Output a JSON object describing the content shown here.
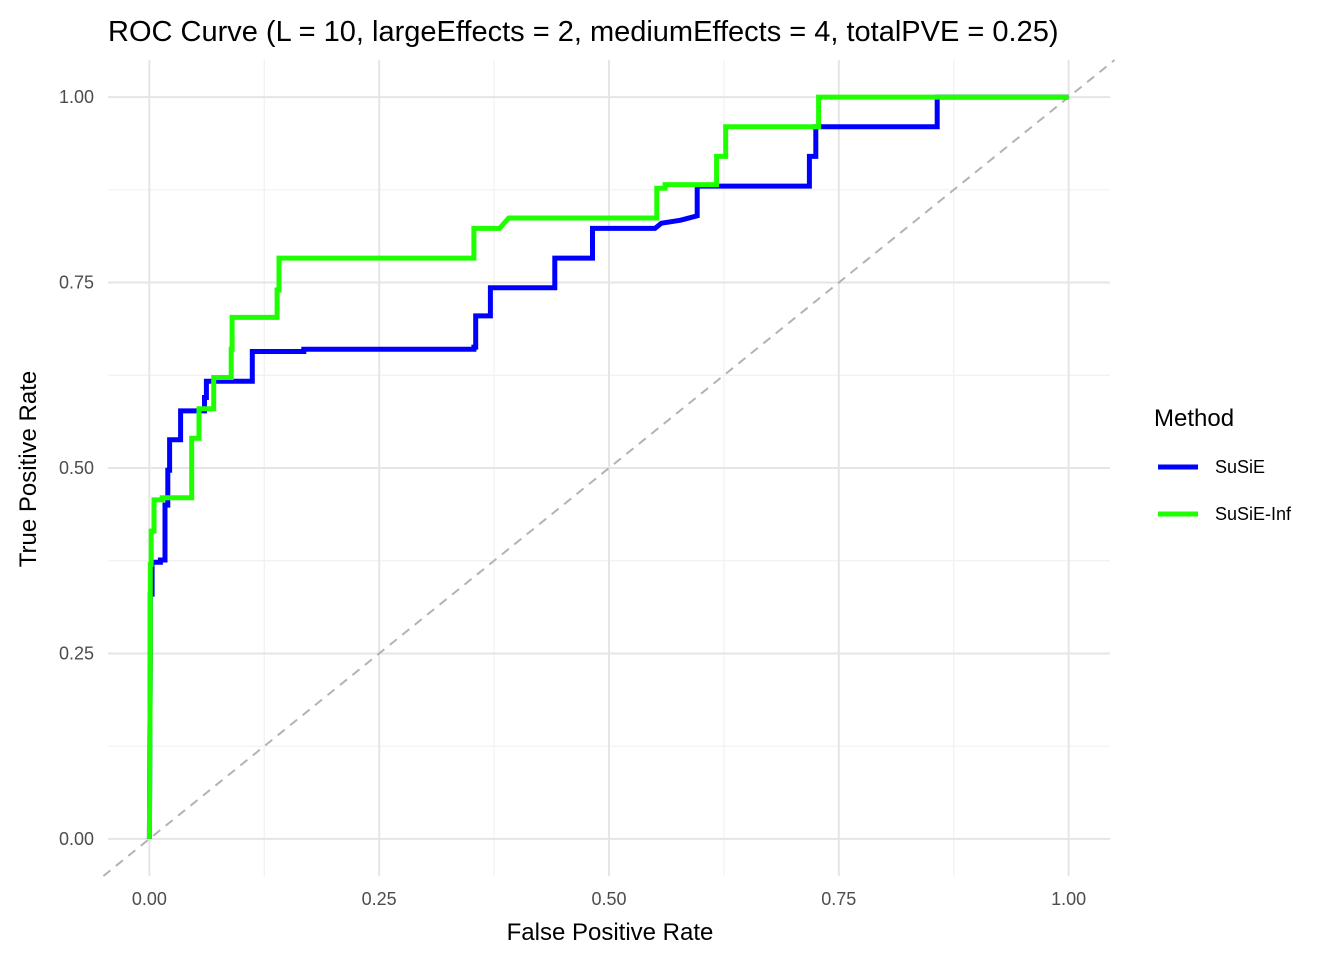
{
  "chart_data": {
    "type": "line",
    "title": "ROC Curve (L = 10, largeEffects = 2, mediumEffects = 4, totalPVE = 0.25)",
    "xlabel": "False Positive Rate",
    "ylabel": "True Positive Rate",
    "xlim": [
      -0.045,
      1.045
    ],
    "ylim": [
      -0.05,
      1.05
    ],
    "x_ticks": [
      0,
      0.25,
      0.5,
      0.75,
      1
    ],
    "x_tick_labels": [
      "0.00",
      "0.25",
      "0.50",
      "0.75",
      "1.00"
    ],
    "y_ticks": [
      0,
      0.25,
      0.5,
      0.75,
      1
    ],
    "y_tick_labels": [
      "0.00",
      "0.25",
      "0.50",
      "0.75",
      "1.00"
    ],
    "grid": true,
    "reference_line": {
      "style": "dashed",
      "color": "#b3b3b3",
      "from": [
        -0.05,
        -0.05
      ],
      "to": [
        1.05,
        1.05
      ]
    },
    "legend": {
      "title": "Method",
      "position": "right"
    },
    "series": [
      {
        "name": "SuSiE",
        "color": "#0000ff",
        "x": [
          0,
          0.001,
          0.001,
          0.003,
          0.003,
          0.012,
          0.012,
          0.017,
          0.017,
          0.02,
          0.02,
          0.022,
          0.022,
          0.034,
          0.034,
          0.06,
          0.06,
          0.062,
          0.062,
          0.064,
          0.064,
          0.112,
          0.112,
          0.168,
          0.168,
          0.353,
          0.353,
          0.355,
          0.355,
          0.371,
          0.371,
          0.441,
          0.441,
          0.482,
          0.482,
          0.55,
          0.557,
          0.578,
          0.596,
          0.596,
          0.718,
          0.718,
          0.725,
          0.725,
          0.857,
          0.857,
          1
        ],
        "y": [
          0,
          0.25,
          0.33,
          0.33,
          0.373,
          0.373,
          0.376,
          0.376,
          0.45,
          0.45,
          0.497,
          0.497,
          0.538,
          0.538,
          0.577,
          0.577,
          0.595,
          0.595,
          0.617,
          0.617,
          0.617,
          0.617,
          0.657,
          0.657,
          0.66,
          0.66,
          0.663,
          0.663,
          0.705,
          0.705,
          0.743,
          0.743,
          0.783,
          0.783,
          0.823,
          0.823,
          0.83,
          0.834,
          0.84,
          0.88,
          0.88,
          0.92,
          0.92,
          0.96,
          0.96,
          1,
          1
        ]
      },
      {
        "name": "SuSiE-Inf",
        "color": "#1eff00",
        "x": [
          0,
          0.001,
          0.001,
          0.002,
          0.002,
          0.005,
          0.005,
          0.014,
          0.014,
          0.046,
          0.046,
          0.054,
          0.054,
          0.07,
          0.07,
          0.089,
          0.089,
          0.09,
          0.09,
          0.139,
          0.139,
          0.141,
          0.141,
          0.353,
          0.353,
          0.381,
          0.388,
          0.391,
          0.391,
          0.552,
          0.552,
          0.561,
          0.561,
          0.617,
          0.617,
          0.627,
          0.627,
          0.728,
          0.728,
          1
        ],
        "y": [
          0,
          0.25,
          0.37,
          0.37,
          0.415,
          0.415,
          0.457,
          0.457,
          0.46,
          0.46,
          0.54,
          0.54,
          0.58,
          0.58,
          0.622,
          0.622,
          0.66,
          0.66,
          0.703,
          0.703,
          0.74,
          0.74,
          0.783,
          0.783,
          0.823,
          0.823,
          0.833,
          0.837,
          0.837,
          0.837,
          0.877,
          0.877,
          0.882,
          0.882,
          0.92,
          0.92,
          0.96,
          0.96,
          1,
          1
        ]
      }
    ]
  }
}
